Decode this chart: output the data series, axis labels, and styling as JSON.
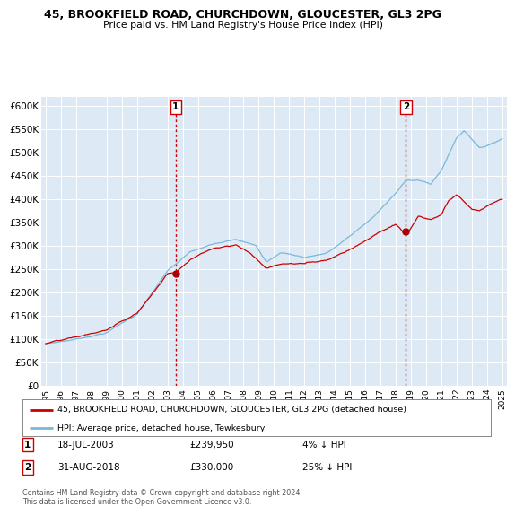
{
  "title_line1": "45, BROOKFIELD ROAD, CHURCHDOWN, GLOUCESTER, GL3 2PG",
  "title_line2": "Price paid vs. HM Land Registry's House Price Index (HPI)",
  "ylabel_ticks": [
    "£0",
    "£50K",
    "£100K",
    "£150K",
    "£200K",
    "£250K",
    "£300K",
    "£350K",
    "£400K",
    "£450K",
    "£500K",
    "£550K",
    "£600K"
  ],
  "ytick_values": [
    0,
    50000,
    100000,
    150000,
    200000,
    250000,
    300000,
    350000,
    400000,
    450000,
    500000,
    550000,
    600000
  ],
  "ylim": [
    0,
    620000
  ],
  "xlim_start": 1994.7,
  "xlim_end": 2025.3,
  "sale1_x": 2003.54,
  "sale1_y": 239950,
  "sale2_x": 2018.67,
  "sale2_y": 330000,
  "legend_property": "45, BROOKFIELD ROAD, CHURCHDOWN, GLOUCESTER, GL3 2PG (detached house)",
  "legend_hpi": "HPI: Average price, detached house, Tewkesbury",
  "annotation1_label": "1",
  "annotation1_date": "18-JUL-2003",
  "annotation1_price": "£239,950",
  "annotation1_hpi": "4% ↓ HPI",
  "annotation2_label": "2",
  "annotation2_date": "31-AUG-2018",
  "annotation2_price": "£330,000",
  "annotation2_hpi": "25% ↓ HPI",
  "copyright_text": "Contains HM Land Registry data © Crown copyright and database right 2024.\nThis data is licensed under the Open Government Licence v3.0.",
  "hpi_color": "#7ab8d9",
  "property_color": "#cc0000",
  "sale_marker_color": "#aa0000",
  "bg_color": "#ffffff",
  "plot_bg_color": "#ddeaf5",
  "grid_color": "#ffffff"
}
